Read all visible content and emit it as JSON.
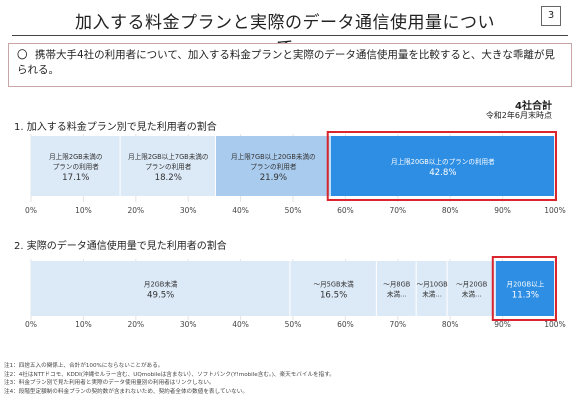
{
  "header": {
    "title": "加入する料金プランと実際のデータ通信使用量について",
    "page_number": "3"
  },
  "summary": {
    "marker": "〇",
    "text": "携帯大手4社の利用者について、加入する料金プランと実際のデータ通信使用量を比較すると、大きな乖離が見られる。"
  },
  "badge": {
    "total": "4社合計",
    "as_of": "令和2年6月末時点"
  },
  "colors": {
    "light": "#dce9f7",
    "medium": "#a9cbee",
    "strong": "#2e8ee3",
    "highlight": "#d9252e"
  },
  "chart_data": [
    {
      "type": "bar",
      "orientation": "horizontal-stacked",
      "title": "1. 加入する料金プラン別で見た利用者の割合",
      "segments": [
        {
          "label": [
            "月上限2GB未満の",
            "プランの利用者"
          ],
          "value": 17.1,
          "value_label": "17.1%",
          "color": "light",
          "highlight": false
        },
        {
          "label": [
            "月上限2GB以上7GB未満の",
            "プランの利用者"
          ],
          "value": 18.2,
          "value_label": "18.2%",
          "color": "light",
          "highlight": false
        },
        {
          "label": [
            "月上限7GB以上20GB未満の",
            "プランの利用者"
          ],
          "value": 21.9,
          "value_label": "21.9%",
          "color": "medium",
          "highlight": false
        },
        {
          "label": [
            "月上限20GB以上のプランの利用者"
          ],
          "value": 42.8,
          "value_label": "42.8%",
          "color": "strong",
          "highlight": true
        }
      ],
      "xticks": [
        "0%",
        "10%",
        "20%",
        "30%",
        "40%",
        "50%",
        "60%",
        "70%",
        "80%",
        "90%",
        "100%"
      ],
      "xlim": [
        0,
        100
      ]
    },
    {
      "type": "bar",
      "orientation": "horizontal-stacked",
      "title": "2. 実際のデータ通信使用量で見た利用者の割合",
      "segments": [
        {
          "label": [
            "月2GB未満"
          ],
          "value": 49.5,
          "value_label": "49.5%",
          "color": "light",
          "highlight": false
        },
        {
          "label": [
            "～月5GB未満"
          ],
          "value": 16.5,
          "value_label": "16.5%",
          "color": "light",
          "highlight": false
        },
        {
          "label": [
            "～月8GB",
            "未満…"
          ],
          "value": 7.6,
          "value_label": "",
          "color": "light",
          "highlight": false
        },
        {
          "label": [
            "～月10GB",
            "未満…"
          ],
          "value": 5.9,
          "value_label": "",
          "color": "light",
          "highlight": false
        },
        {
          "label": [
            "～月20GB",
            "未満…"
          ],
          "value": 9.2,
          "value_label": "",
          "color": "light",
          "highlight": false
        },
        {
          "label": [
            "月20GB以上"
          ],
          "value": 11.3,
          "value_label": "11.3%",
          "color": "strong",
          "highlight": true
        }
      ],
      "xticks": [
        "0%",
        "10%",
        "20%",
        "30%",
        "40%",
        "50%",
        "60%",
        "70%",
        "80%",
        "90%",
        "100%"
      ],
      "xlim": [
        0,
        100
      ]
    }
  ],
  "notes": [
    "注1：四捨五入の関係上、合計が100%にならないことがある。",
    "注2：4社はNTTドコモ、KDDI(沖縄セルラー含む、UQmobileは含まない）、ソフトバンク(Y!mobile含む。)、楽天モバイルを指す。",
    "注3：料金プラン別で見た利用者と実際のデータ使用量別の利用者はリンクしない。",
    "注4：段階型定額制の料金プランの契約数が含まれないため、契約者全体の数値を表していない。"
  ]
}
